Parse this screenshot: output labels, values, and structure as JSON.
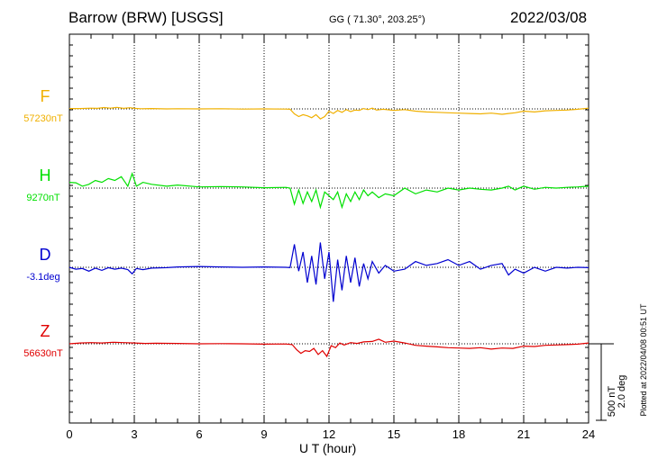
{
  "header": {
    "station": "Barrow (BRW)  [USGS]",
    "coords": "GG ( 71.30°, 203.25°)",
    "date": "2022/03/08"
  },
  "footer": {
    "plotted": "Plotted at 2022/04/08 00:51 UT"
  },
  "scale": {
    "line1": "500 nT",
    "line2": "2.0 deg"
  },
  "colors": {
    "F": "#f0b000",
    "H": "#00e000",
    "D": "#0000d0",
    "Z": "#e00000"
  },
  "chart_data": {
    "type": "line",
    "xlabel": "U T (hour)",
    "xlim": [
      0,
      24
    ],
    "xticks": [
      "0",
      "3",
      "6",
      "9",
      "12",
      "15",
      "18",
      "21",
      "24"
    ],
    "grid": true,
    "series": [
      {
        "name": "F",
        "baseline_label": "57230nT",
        "color": "#f0b000",
        "x": [
          0,
          0.5,
          1,
          1.3,
          1.6,
          1.9,
          2.2,
          2.5,
          2.8,
          3,
          3.3,
          3.8,
          4.5,
          5,
          6,
          7,
          8,
          9,
          10,
          10.2,
          10.4,
          10.6,
          10.8,
          11,
          11.2,
          11.4,
          11.6,
          11.8,
          12,
          12.2,
          12.4,
          12.6,
          12.8,
          13,
          13.2,
          13.4,
          13.6,
          13.8,
          14,
          14.2,
          14.5,
          15,
          15.5,
          16,
          16.5,
          17,
          17.5,
          18,
          18.5,
          19,
          19.5,
          20,
          20.3,
          20.6,
          21,
          21.5,
          22,
          22.5,
          23,
          23.5,
          24
        ],
        "y": [
          10,
          10,
          20,
          15,
          35,
          20,
          40,
          15,
          30,
          15,
          5,
          10,
          0,
          5,
          0,
          5,
          -5,
          0,
          -5,
          -10,
          -130,
          -200,
          -150,
          -180,
          -230,
          -150,
          -260,
          -200,
          -60,
          -120,
          -40,
          -90,
          -20,
          -70,
          -30,
          -40,
          10,
          -20,
          20,
          -30,
          -10,
          -40,
          -20,
          -60,
          -80,
          -90,
          -100,
          -110,
          -120,
          -130,
          -110,
          -140,
          -120,
          -100,
          -60,
          -80,
          -50,
          -40,
          -30,
          -10,
          20
        ]
      },
      {
        "name": "H",
        "baseline_label": "9270nT",
        "color": "#00e000",
        "x": [
          0,
          0.3,
          0.6,
          0.9,
          1.2,
          1.5,
          1.8,
          2.1,
          2.4,
          2.7,
          2.9,
          3.1,
          3.4,
          3.8,
          4.5,
          5,
          6,
          7,
          8,
          9,
          10,
          10.2,
          10.4,
          10.6,
          10.8,
          11,
          11.2,
          11.4,
          11.6,
          11.8,
          12,
          12.2,
          12.4,
          12.6,
          12.8,
          13,
          13.2,
          13.4,
          13.6,
          13.8,
          14,
          14.3,
          14.6,
          15,
          15.5,
          16,
          16.5,
          17,
          17.5,
          18,
          18.5,
          19,
          19.5,
          20,
          20.3,
          20.6,
          21,
          21.5,
          22,
          22.5,
          23,
          23.5,
          24
        ],
        "y": [
          150,
          140,
          50,
          100,
          200,
          150,
          250,
          200,
          300,
          50,
          380,
          50,
          150,
          100,
          50,
          80,
          30,
          40,
          30,
          10,
          20,
          0,
          -420,
          -50,
          -400,
          -100,
          -350,
          -50,
          -500,
          -100,
          -200,
          -300,
          -100,
          -500,
          -150,
          -350,
          -100,
          -300,
          -50,
          -200,
          -100,
          -250,
          -150,
          -200,
          0,
          -150,
          -50,
          -100,
          0,
          -50,
          0,
          -30,
          -50,
          0,
          50,
          -50,
          50,
          -30,
          20,
          0,
          20,
          30,
          50
        ]
      },
      {
        "name": "D",
        "baseline_label": "-3.1deg",
        "color": "#0000d0",
        "x": [
          0,
          0.3,
          0.6,
          0.9,
          1.2,
          1.5,
          1.8,
          2.1,
          2.4,
          2.7,
          2.9,
          3.1,
          3.4,
          3.8,
          4.5,
          5,
          6,
          7,
          8,
          9,
          10,
          10.2,
          10.4,
          10.6,
          10.8,
          11,
          11.2,
          11.4,
          11.6,
          11.8,
          12,
          12.2,
          12.4,
          12.6,
          12.8,
          13,
          13.2,
          13.4,
          13.6,
          13.8,
          14,
          14.3,
          14.6,
          15,
          15.5,
          16,
          16.5,
          17,
          17.5,
          18,
          18.5,
          19,
          19.5,
          20,
          20.3,
          20.6,
          21,
          21.5,
          22,
          22.5,
          23,
          23.5,
          24
        ],
        "y": [
          0,
          -50,
          -30,
          -100,
          -20,
          -80,
          -10,
          -50,
          -20,
          -60,
          -170,
          -30,
          -60,
          -20,
          -10,
          10,
          20,
          10,
          0,
          10,
          0,
          -10,
          600,
          -100,
          400,
          -400,
          300,
          -450,
          650,
          -300,
          400,
          -900,
          200,
          -600,
          300,
          -400,
          250,
          -500,
          100,
          -300,
          150,
          -150,
          50,
          -100,
          -50,
          150,
          50,
          100,
          200,
          50,
          150,
          -50,
          50,
          100,
          -200,
          -50,
          -150,
          0,
          -100,
          0,
          -20,
          0,
          -10
        ]
      },
      {
        "name": "Z",
        "baseline_label": "56630nT",
        "color": "#e00000",
        "x": [
          0,
          0.5,
          1,
          1.5,
          2,
          2.5,
          3,
          3.5,
          4,
          5,
          6,
          7,
          8,
          9,
          10,
          10.3,
          10.5,
          10.7,
          10.9,
          11.1,
          11.3,
          11.5,
          11.7,
          11.9,
          12.1,
          12.3,
          12.5,
          12.7,
          13,
          13.3,
          13.6,
          14,
          14.3,
          14.6,
          15,
          15.5,
          16,
          16.5,
          17,
          17.5,
          18,
          18.5,
          19,
          19.5,
          20,
          20.5,
          21,
          21.5,
          22,
          22.5,
          23,
          23.5,
          24
        ],
        "y": [
          0,
          20,
          30,
          20,
          40,
          30,
          20,
          10,
          15,
          10,
          0,
          5,
          0,
          -10,
          -5,
          -20,
          -150,
          -250,
          -180,
          -200,
          -120,
          -280,
          -180,
          -330,
          -50,
          -100,
          20,
          -30,
          30,
          10,
          50,
          60,
          120,
          40,
          70,
          20,
          -40,
          -60,
          -80,
          -100,
          -110,
          -120,
          -100,
          -140,
          -110,
          -120,
          -60,
          -70,
          -40,
          -30,
          -20,
          -10,
          20
        ]
      }
    ]
  }
}
